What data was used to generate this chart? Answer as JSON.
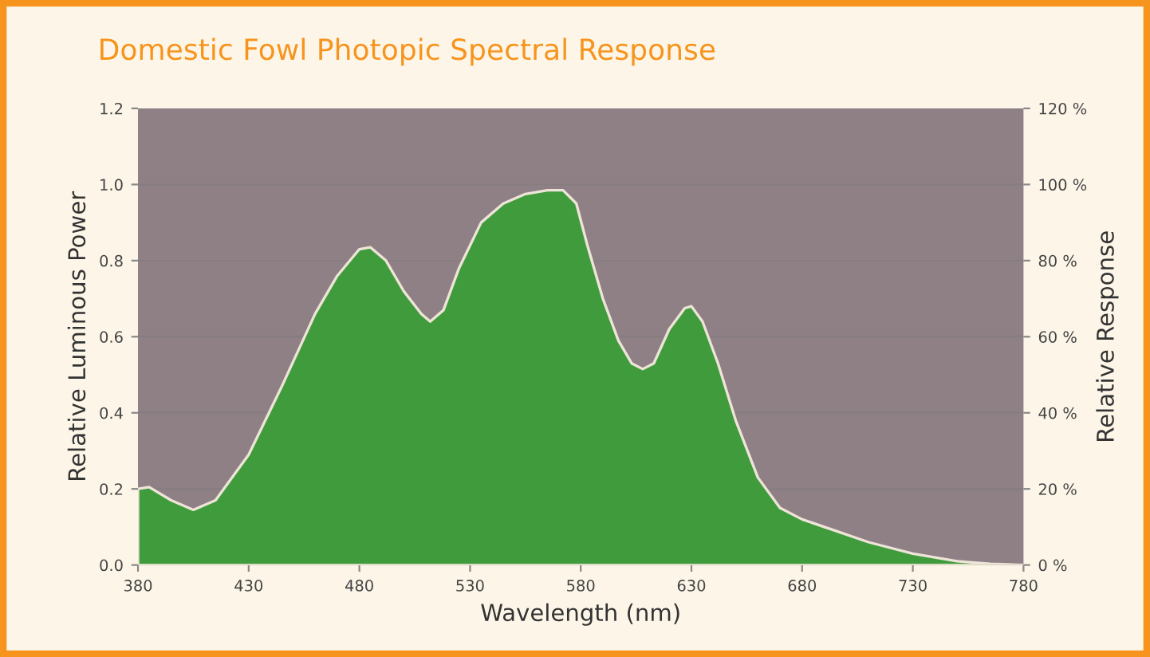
{
  "chart_data": {
    "type": "area",
    "title": "Domestic Fowl Photopic Spectral Response",
    "xlabel": "Wavelength (nm)",
    "ylabel": "Relative Luminous Power",
    "y2label": "Relative Response",
    "xlim": [
      380,
      780
    ],
    "xticks": [
      380,
      430,
      480,
      530,
      580,
      630,
      680,
      730,
      780
    ],
    "ylim": [
      0,
      1.2
    ],
    "yticks": [
      {
        "value": 0,
        "label": "0.0"
      },
      0.2,
      0.4,
      0.6,
      0.8,
      {
        "value": 1,
        "label": "1.0"
      },
      1.2
    ],
    "y2lim": [
      0,
      120
    ],
    "y2ticks": [
      {
        "value": 0,
        "label": "0 %"
      },
      {
        "value": 20,
        "label": "20 %"
      },
      {
        "value": 40,
        "label": "40 %"
      },
      {
        "value": 60,
        "label": "60 %"
      },
      {
        "value": 80,
        "label": "80 %"
      },
      {
        "value": 100,
        "label": "100 %"
      },
      {
        "value": 120,
        "label": "120 %"
      }
    ],
    "grid": "y",
    "legend": false,
    "series": [
      {
        "color": "#3f9b3c",
        "x": [
          380,
          385,
          395,
          405,
          415,
          430,
          445,
          460,
          470,
          480,
          485,
          492,
          500,
          508,
          512,
          518,
          525,
          535,
          545,
          555,
          565,
          572,
          578,
          583,
          590,
          597,
          603,
          608,
          613,
          620,
          627,
          630,
          635,
          642,
          650,
          660,
          670,
          680,
          695,
          710,
          730,
          750,
          765,
          780
        ],
        "values": [
          0.2,
          0.205,
          0.17,
          0.145,
          0.17,
          0.29,
          0.47,
          0.66,
          0.76,
          0.83,
          0.835,
          0.8,
          0.72,
          0.66,
          0.64,
          0.67,
          0.78,
          0.9,
          0.95,
          0.975,
          0.985,
          0.985,
          0.95,
          0.84,
          0.7,
          0.59,
          0.53,
          0.515,
          0.53,
          0.62,
          0.675,
          0.68,
          0.64,
          0.53,
          0.38,
          0.23,
          0.15,
          0.12,
          0.09,
          0.06,
          0.03,
          0.01,
          0.003,
          0.0
        ]
      }
    ]
  }
}
